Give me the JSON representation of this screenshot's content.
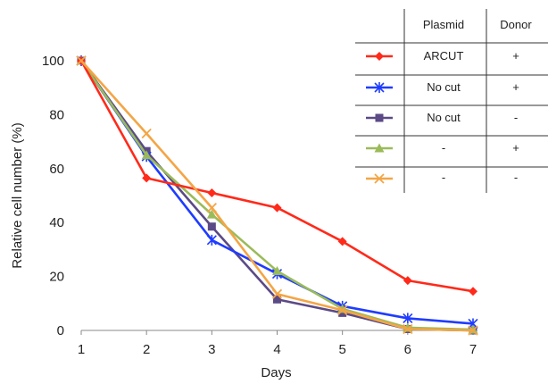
{
  "chart_data": {
    "type": "line",
    "xlabel": "Days",
    "ylabel": "Relative cell number (%)",
    "x": [
      1,
      2,
      3,
      4,
      5,
      6,
      7
    ],
    "xlim": [
      1,
      7
    ],
    "ylim": [
      0,
      100
    ],
    "yticks": [
      0,
      20,
      40,
      60,
      80,
      100
    ],
    "grid": false,
    "legend_placement": "top-right",
    "legend_headers": {
      "plasmid": "Plasmid",
      "donor": "Donor"
    },
    "series": [
      {
        "plasmid": "ARCUT",
        "donor": "+",
        "color": "#ff2a1a",
        "marker": "diamond",
        "values": [
          100,
          56.5,
          51,
          45.5,
          33,
          18.5,
          14.5
        ]
      },
      {
        "plasmid": "No cut",
        "donor": "+",
        "color": "#1f3cff",
        "marker": "asterisk",
        "values": [
          100,
          64.5,
          33.5,
          21,
          9,
          4.5,
          2.5
        ]
      },
      {
        "plasmid": "No cut",
        "donor": "-",
        "color": "#5b4a86",
        "marker": "square",
        "values": [
          100,
          66.5,
          38.5,
          11.5,
          6.5,
          0.5,
          0
        ]
      },
      {
        "plasmid": "-",
        "donor": "+",
        "color": "#9bbb59",
        "marker": "triangle",
        "values": [
          100,
          65,
          43,
          22,
          8,
          1,
          0.3
        ]
      },
      {
        "plasmid": "-",
        "donor": "-",
        "color": "#f4a545",
        "marker": "x",
        "values": [
          100,
          73,
          45.5,
          13.5,
          7.5,
          0.5,
          0
        ]
      }
    ]
  }
}
